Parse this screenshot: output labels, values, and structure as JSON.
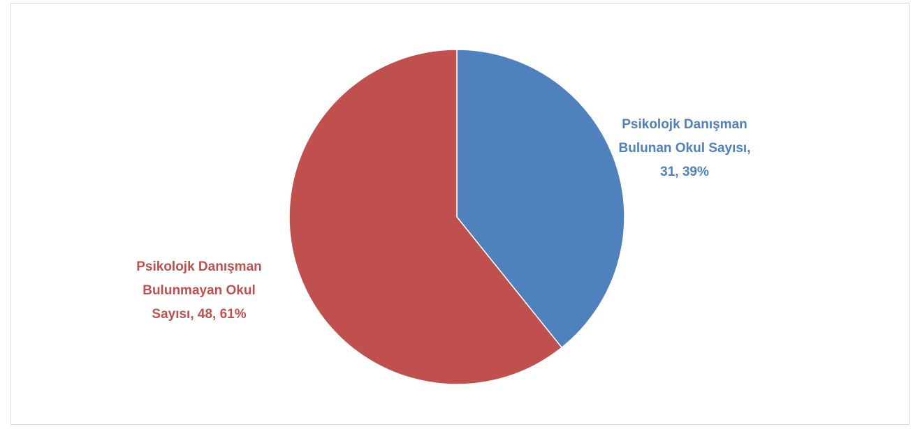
{
  "chart_data": {
    "type": "pie",
    "title": "",
    "categories": [
      "Psikolojk Danışman Bulunan Okul Sayısı",
      "Psikolojk Danışman Bulunmayan Okul Sayısı"
    ],
    "values": [
      31,
      48
    ],
    "percents": [
      39,
      61
    ],
    "colors": [
      "#4F81BD",
      "#C0504D"
    ],
    "legend": "none",
    "labels": [
      {
        "lines": [
          "Psikolojk Danışman",
          "Bulunan Okul Sayısı,",
          "31, 39%"
        ]
      },
      {
        "lines": [
          "Psikolojk Danışman",
          "Bulunmayan Okul",
          "Sayısı, 48, 61%"
        ]
      }
    ]
  }
}
